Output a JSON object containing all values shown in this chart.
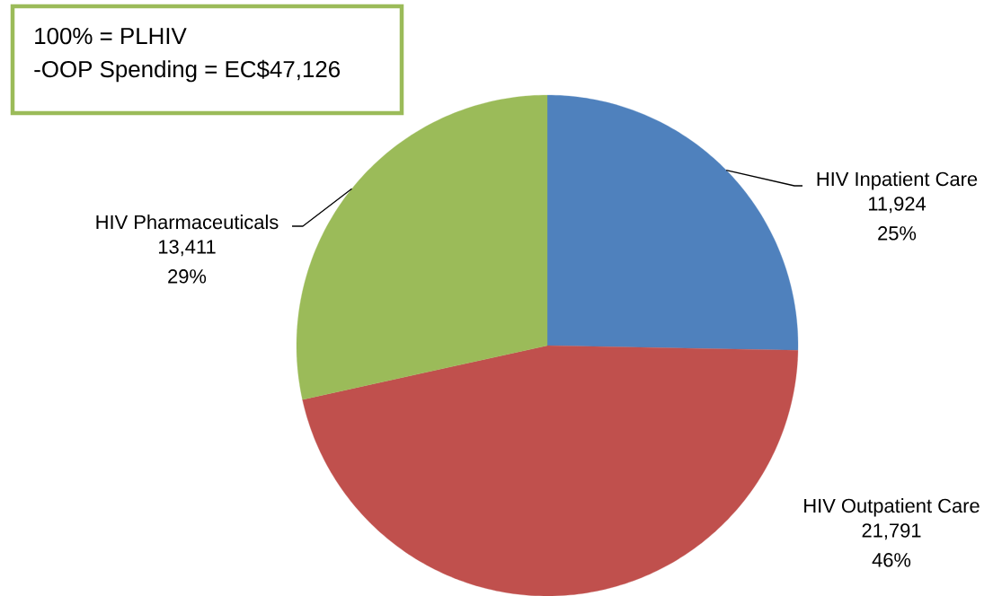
{
  "chart_data": {
    "type": "pie",
    "categories": [
      "HIV Inpatient Care",
      "HIV Outpatient Care",
      "HIV Pharmaceuticals"
    ],
    "values": [
      11924,
      21791,
      13411
    ],
    "colors": [
      "#4f81bd",
      "#c0504d",
      "#9bbb59"
    ],
    "value_labels": [
      "11,924 25%",
      "21,791 46%",
      "13,411 29%"
    ],
    "annotations": [
      "100% = PLHIV",
      "-OOP Spending = EC$47,126"
    ]
  }
}
